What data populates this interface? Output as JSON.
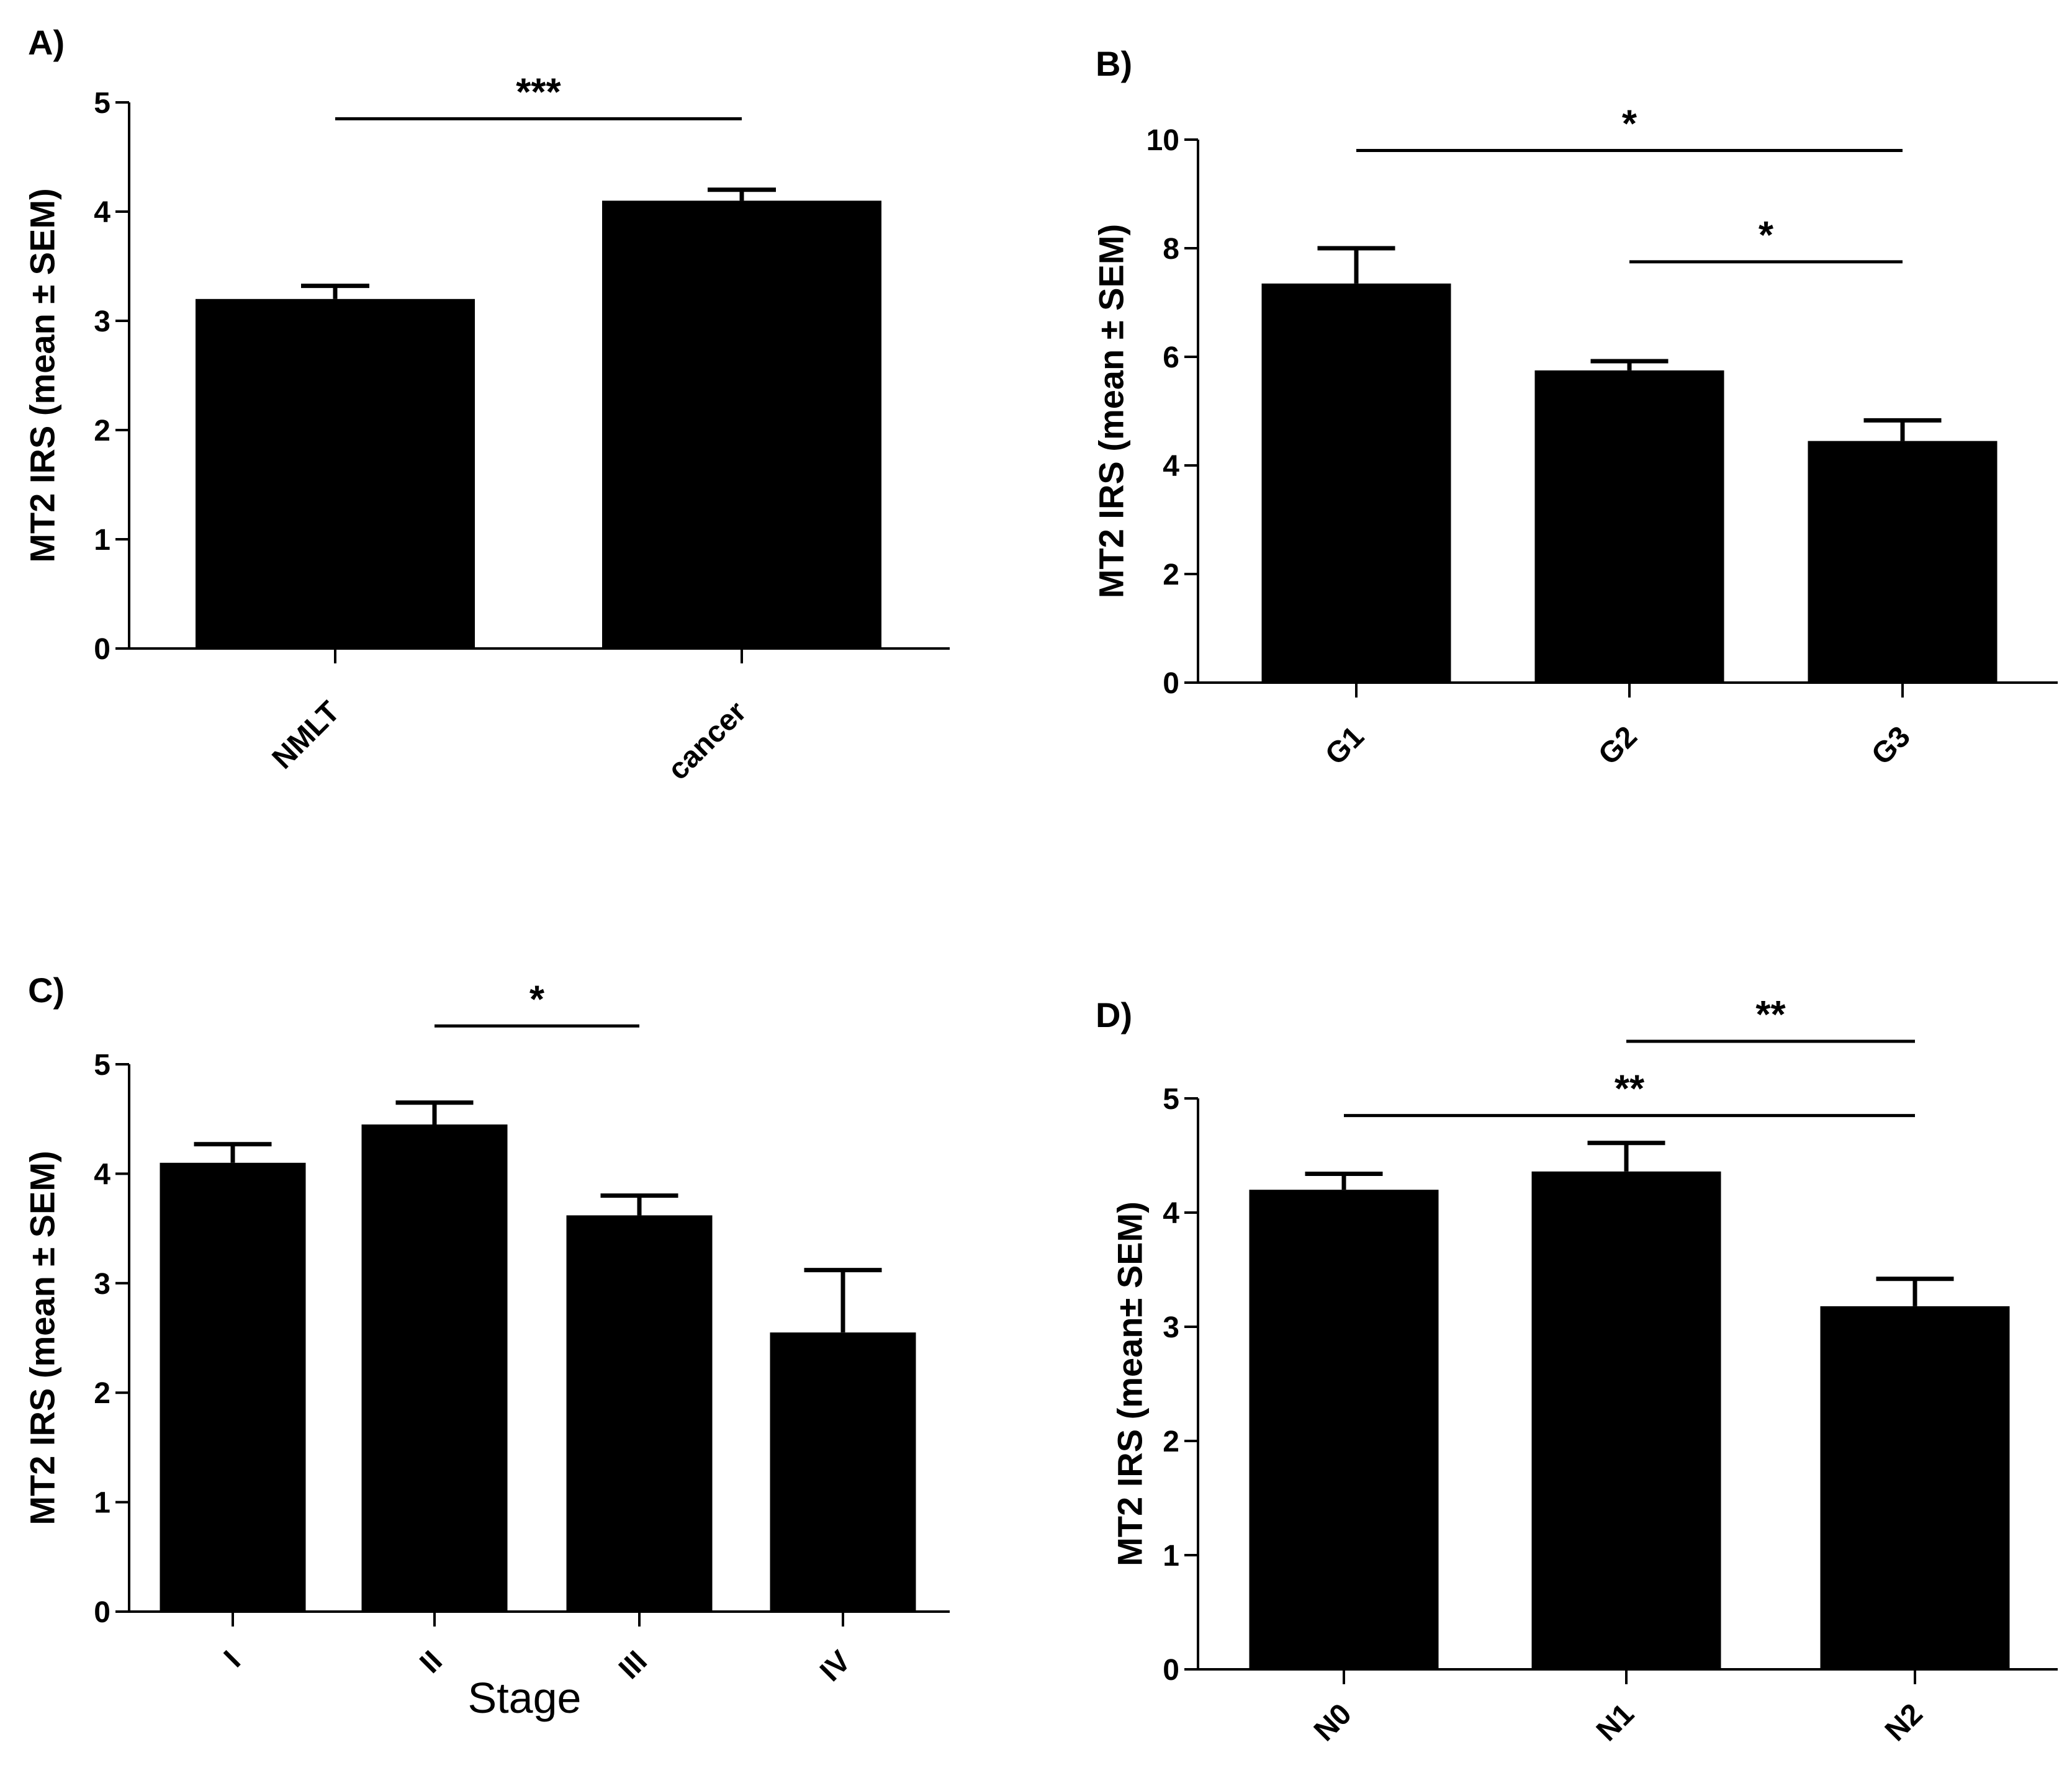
{
  "chart_data": [
    {
      "panel": "A)",
      "type": "bar",
      "ylabel": "MT2 IRS (mean ± SEM)",
      "xlabel": "",
      "ylim": [
        0,
        5
      ],
      "yticks": [
        "0",
        "1",
        "2",
        "3",
        "4",
        "5"
      ],
      "categories": [
        "NMLT",
        "cancer"
      ],
      "values": [
        3.2,
        4.1
      ],
      "errors": [
        0.12,
        0.1
      ],
      "significance": [
        {
          "from": 0,
          "to": 1,
          "label": "***",
          "level": 4.85
        }
      ]
    },
    {
      "panel": "B)",
      "type": "bar",
      "ylabel": "MT2 IRS (mean ± SEM)",
      "xlabel": "",
      "ylim": [
        0,
        10
      ],
      "yticks": [
        "0",
        "2",
        "4",
        "6",
        "8",
        "10"
      ],
      "categories": [
        "G1",
        "G2",
        "G3"
      ],
      "values": [
        7.35,
        5.75,
        4.45
      ],
      "errors": [
        0.65,
        0.17,
        0.38
      ],
      "significance": [
        {
          "from": 0,
          "to": 2,
          "label": "*",
          "level": 9.8
        },
        {
          "from": 1,
          "to": 2,
          "label": "*",
          "level": 7.75
        }
      ]
    },
    {
      "panel": "C)",
      "type": "bar",
      "ylabel": "MT2 IRS (mean ± SEM)",
      "xlabel": "Stage",
      "ylim": [
        0,
        5
      ],
      "yticks": [
        "0",
        "1",
        "2",
        "3",
        "4",
        "5"
      ],
      "categories": [
        "I",
        "II",
        "III",
        "IV"
      ],
      "values": [
        4.1,
        4.45,
        3.62,
        2.55
      ],
      "errors": [
        0.17,
        0.2,
        0.18,
        0.57
      ],
      "significance": [
        {
          "from": 1,
          "to": 2,
          "label": "*",
          "level": 5.35
        }
      ]
    },
    {
      "panel": "D)",
      "type": "bar",
      "ylabel": "MT2 IRS (mean± SEM)",
      "xlabel": "",
      "ylim": [
        0,
        5
      ],
      "yticks": [
        "0",
        "1",
        "2",
        "3",
        "4",
        "5"
      ],
      "categories": [
        "N0",
        "N1",
        "N2"
      ],
      "values": [
        4.2,
        4.36,
        3.18
      ],
      "errors": [
        0.14,
        0.25,
        0.24
      ],
      "significance": [
        {
          "from": 0,
          "to": 2,
          "label": "**",
          "level": 4.85
        },
        {
          "from": 1,
          "to": 2,
          "label": "**",
          "level": 5.5
        }
      ]
    }
  ]
}
